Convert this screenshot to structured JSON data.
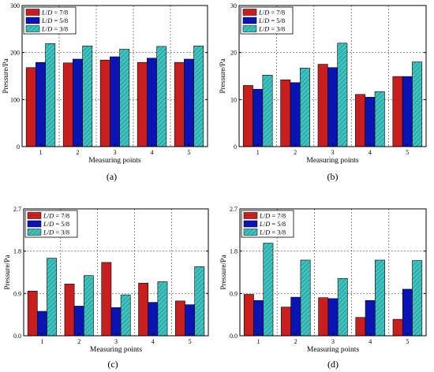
{
  "colors": {
    "series": [
      "#c81e1e",
      "#0a14b4",
      "#3ec4c0"
    ],
    "border": "#000000",
    "grid": "#555555"
  },
  "chart_data": [
    {
      "panel": "(a)",
      "type": "bar",
      "categories": [
        "1",
        "2",
        "3",
        "4",
        "5"
      ],
      "xlabel": "Measuring points",
      "ylabel": "Pressure/Pa",
      "ylim": [
        0,
        300
      ],
      "yticks": [
        "0",
        "100",
        "200",
        "300"
      ],
      "grid": true,
      "legend": "top-left",
      "series": [
        {
          "name": "L/D = 7/8",
          "values": [
            168,
            178,
            184,
            179,
            179
          ]
        },
        {
          "name": "L/D = 5/8",
          "values": [
            179,
            186,
            191,
            188,
            186
          ]
        },
        {
          "name": "L/D = 3/8",
          "values": [
            219,
            214,
            207,
            213,
            214
          ]
        }
      ]
    },
    {
      "panel": "(b)",
      "type": "bar",
      "categories": [
        "1",
        "2",
        "3",
        "4",
        "5"
      ],
      "xlabel": "Measuring points",
      "ylabel": "Pressure/Pa",
      "ylim": [
        0,
        30
      ],
      "yticks": [
        "0",
        "10",
        "20",
        "30"
      ],
      "grid": true,
      "legend": "top-left",
      "series": [
        {
          "name": "L/D = 7/8",
          "values": [
            13.0,
            14.2,
            17.5,
            11.1,
            14.9
          ]
        },
        {
          "name": "L/D = 5/8",
          "values": [
            12.2,
            13.6,
            16.8,
            10.5,
            14.9
          ]
        },
        {
          "name": "L/D = 3/8",
          "values": [
            15.2,
            16.7,
            22.0,
            11.7,
            18.0
          ]
        }
      ]
    },
    {
      "panel": "(c)",
      "type": "bar",
      "categories": [
        "1",
        "2",
        "3",
        "4",
        "5"
      ],
      "xlabel": "Measuring points",
      "ylabel": "Pressure/Pa",
      "ylim": [
        0,
        2.7
      ],
      "yticks": [
        "0.0",
        "0.9",
        "1.8",
        "2.7"
      ],
      "grid": true,
      "legend": "top-left",
      "series": [
        {
          "name": "L/D = 7/8",
          "values": [
            0.95,
            1.1,
            1.56,
            1.12,
            0.74
          ]
        },
        {
          "name": "L/D = 5/8",
          "values": [
            0.52,
            0.63,
            0.6,
            0.71,
            0.66
          ]
        },
        {
          "name": "L/D = 3/8",
          "values": [
            1.65,
            1.28,
            0.87,
            1.15,
            1.47
          ]
        }
      ]
    },
    {
      "panel": "(d)",
      "type": "bar",
      "categories": [
        "1",
        "2",
        "3",
        "4",
        "5"
      ],
      "xlabel": "Measuring points",
      "ylabel": "Pressure/Pa",
      "ylim": [
        0,
        2.7
      ],
      "yticks": [
        "0.0",
        "0.9",
        "1.8",
        "2.7"
      ],
      "grid": true,
      "legend": "top-left",
      "series": [
        {
          "name": "L/D = 7/8",
          "values": [
            0.88,
            0.61,
            0.81,
            0.39,
            0.35
          ]
        },
        {
          "name": "L/D = 5/8",
          "values": [
            0.75,
            0.82,
            0.79,
            0.75,
            0.99
          ]
        },
        {
          "name": "L/D = 3/8",
          "values": [
            1.97,
            1.61,
            1.22,
            1.61,
            1.6
          ]
        }
      ]
    }
  ]
}
